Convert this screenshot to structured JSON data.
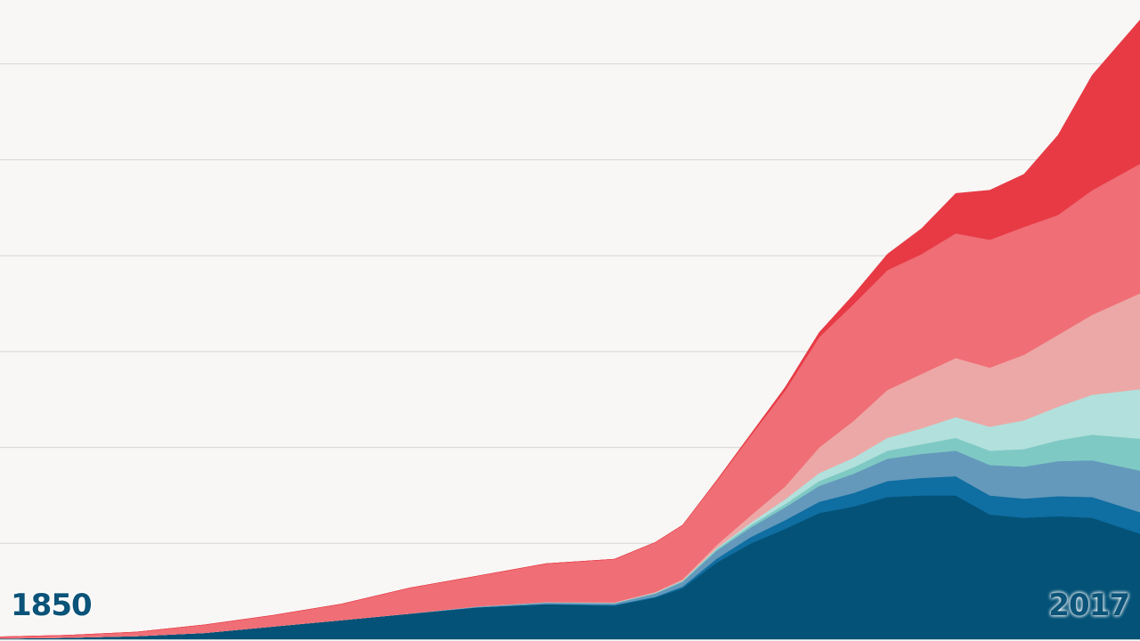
{
  "chart_data": {
    "type": "area",
    "stacked": true,
    "x_range": [
      1850,
      2017
    ],
    "ylim": [
      0,
      40
    ],
    "grid": true,
    "y_gridlines": [
      0,
      6,
      12,
      18,
      24,
      30,
      36
    ],
    "legend": "none",
    "x_labels": {
      "start": "1850",
      "end": "2017"
    },
    "x": [
      1850,
      1860,
      1870,
      1880,
      1890,
      1900,
      1910,
      1920,
      1930,
      1940,
      1946,
      1950,
      1955,
      1960,
      1965,
      1970,
      1975,
      1980,
      1985,
      1990,
      1995,
      2000,
      2005,
      2010,
      2017
    ],
    "series": [
      {
        "color": "#045277",
        "values": [
          0.05,
          0.1,
          0.2,
          0.4,
          0.8,
          1.2,
          1.6,
          2.0,
          2.2,
          2.1,
          2.6,
          3.2,
          4.8,
          6.0,
          6.9,
          7.9,
          8.3,
          8.9,
          9.0,
          9.0,
          7.8,
          7.6,
          7.7,
          7.6,
          6.6
        ]
      },
      {
        "color": "#0f6ea2",
        "values": [
          0,
          0,
          0,
          0,
          0,
          0,
          0,
          0,
          0,
          0.05,
          0.06,
          0.1,
          0.25,
          0.4,
          0.55,
          0.7,
          0.85,
          1.0,
          1.1,
          1.2,
          1.2,
          1.2,
          1.25,
          1.3,
          1.35
        ]
      },
      {
        "color": "#6499bb",
        "values": [
          0,
          0,
          0,
          0,
          0,
          0,
          0.01,
          0.05,
          0.1,
          0.1,
          0.2,
          0.3,
          0.5,
          0.6,
          0.8,
          1.0,
          1.2,
          1.4,
          1.5,
          1.6,
          1.9,
          2.0,
          2.2,
          2.3,
          2.6
        ]
      },
      {
        "color": "#7fc9c4",
        "values": [
          0,
          0,
          0,
          0,
          0,
          0,
          0,
          0,
          0.01,
          0.02,
          0.03,
          0.05,
          0.1,
          0.15,
          0.2,
          0.3,
          0.4,
          0.5,
          0.6,
          0.8,
          0.9,
          1.1,
          1.3,
          1.6,
          2.0
        ]
      },
      {
        "color": "#b2e0dc",
        "values": [
          0,
          0,
          0,
          0,
          0,
          0,
          0,
          0,
          0,
          0.01,
          0.02,
          0.02,
          0.05,
          0.15,
          0.3,
          0.5,
          0.6,
          0.8,
          1.0,
          1.3,
          1.5,
          1.8,
          2.1,
          2.5,
          3.1
        ]
      },
      {
        "color": "#eca8a6",
        "values": [
          0,
          0,
          0,
          0,
          0,
          0,
          0,
          0.01,
          0.02,
          0.03,
          0.05,
          0.08,
          0.2,
          0.45,
          0.8,
          1.6,
          2.3,
          3.0,
          3.4,
          3.7,
          3.7,
          4.1,
          4.5,
          5.0,
          6.0
        ]
      },
      {
        "color": "#f06e76",
        "values": [
          0.1,
          0.15,
          0.25,
          0.5,
          0.7,
          1.0,
          1.6,
          1.9,
          2.4,
          2.7,
          3.1,
          3.4,
          4.0,
          5.0,
          6.0,
          6.9,
          7.3,
          7.5,
          7.5,
          7.8,
          8.0,
          8.0,
          7.5,
          7.8,
          8.1
        ]
      },
      {
        "color": "#e73a45",
        "values": [
          0,
          0,
          0,
          0,
          0,
          0,
          0,
          0,
          0,
          0,
          0,
          0,
          0.05,
          0.1,
          0.2,
          0.3,
          0.6,
          1.0,
          1.6,
          2.5,
          3.1,
          3.3,
          5.0,
          7.2,
          9.0
        ]
      }
    ]
  }
}
